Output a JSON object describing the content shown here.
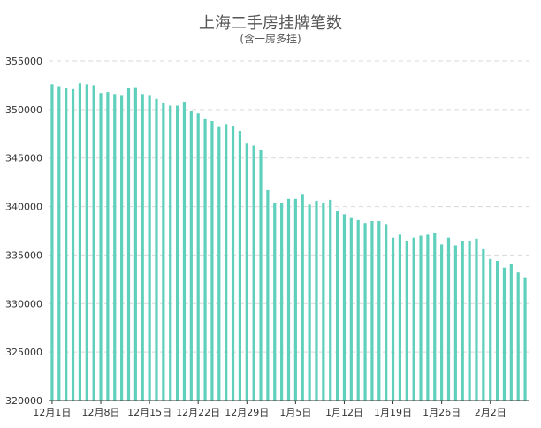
{
  "chart_data": {
    "type": "bar",
    "title": "上海二手房挂牌笔数",
    "subtitle": "(含一房多挂)",
    "ylim": [
      320000,
      355000
    ],
    "y_ticks": [
      320000,
      325000,
      330000,
      335000,
      340000,
      345000,
      350000,
      355000
    ],
    "x_tick_labels": [
      "12月1日",
      "12月8日",
      "12月15日",
      "12月22日",
      "12月29日",
      "1月5日",
      "1月12日",
      "1月19日",
      "1月26日",
      "2月2日"
    ],
    "grid": true,
    "bar_color": "#5fd0bb",
    "values": [
      352600,
      352400,
      352200,
      352100,
      352700,
      352600,
      352500,
      351700,
      351800,
      351600,
      351500,
      352200,
      352300,
      351600,
      351500,
      351100,
      350700,
      350400,
      350400,
      350800,
      349800,
      349600,
      349000,
      348800,
      348200,
      348500,
      348300,
      347800,
      346500,
      346300,
      345800,
      341700,
      340400,
      340400,
      340800,
      340800,
      341300,
      340200,
      340600,
      340400,
      340700,
      339500,
      339200,
      338900,
      338600,
      338300,
      338500,
      338500,
      338200,
      336800,
      337100,
      336500,
      336800,
      337000,
      337100,
      337300,
      336100,
      336800,
      336000,
      336500,
      336500,
      336700,
      335600,
      334600,
      334400,
      333700,
      334100,
      333200,
      332700
    ]
  }
}
